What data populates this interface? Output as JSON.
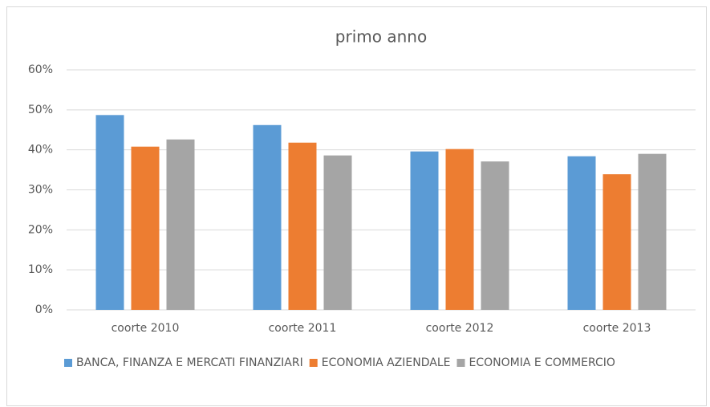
{
  "chart_data": {
    "type": "bar",
    "title": "primo anno",
    "categories": [
      "coorte 2010",
      "coorte 2011",
      "coorte 2012",
      "coorte 2013"
    ],
    "series": [
      {
        "name": "BANCA, FINANZA E MERCATI FINANZIARI",
        "color": "#5b9bd5",
        "values": [
          48.7,
          46.2,
          39.6,
          38.4
        ]
      },
      {
        "name": "ECONOMIA AZIENDALE",
        "color": "#ed7d31",
        "values": [
          40.8,
          41.8,
          40.2,
          33.9
        ]
      },
      {
        "name": "ECONOMIA E COMMERCIO",
        "color": "#a5a5a5",
        "values": [
          42.6,
          38.6,
          37.1,
          39.0
        ]
      }
    ],
    "ylim": [
      0,
      60
    ],
    "yticks": [
      {
        "value": 0,
        "label": "0%"
      },
      {
        "value": 10,
        "label": "10%"
      },
      {
        "value": 20,
        "label": "20%"
      },
      {
        "value": 30,
        "label": "30%"
      },
      {
        "value": 40,
        "label": "40%"
      },
      {
        "value": 50,
        "label": "50%"
      },
      {
        "value": 60,
        "label": "60%"
      }
    ],
    "grid": true,
    "legend": "bottom"
  }
}
